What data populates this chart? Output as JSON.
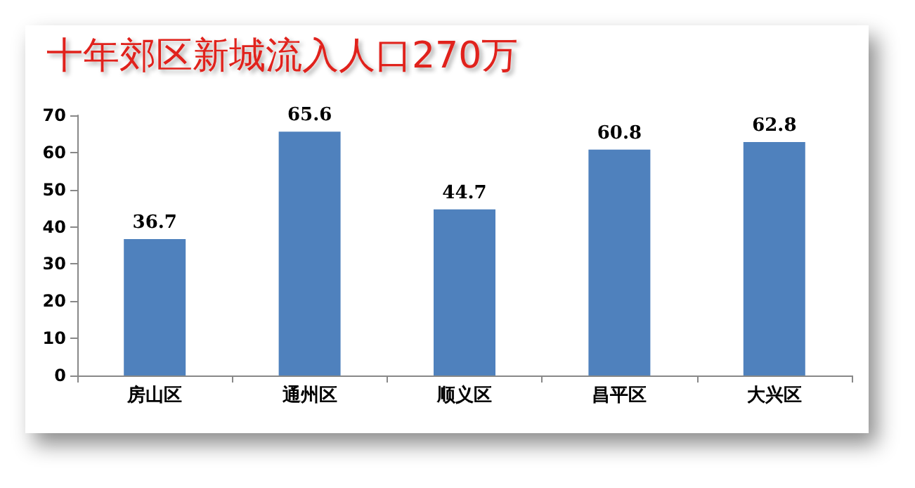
{
  "chart_data": {
    "type": "bar",
    "title": "十年郊区新城流入人口270万",
    "categories": [
      "房山区",
      "通州区",
      "顺义区",
      "昌平区",
      "大兴区"
    ],
    "values": [
      36.7,
      65.6,
      44.7,
      60.8,
      62.8
    ],
    "color": "#4f81bd",
    "ylim": [
      0,
      70
    ],
    "yticks": [
      0,
      10,
      20,
      30,
      40,
      50,
      60,
      70
    ],
    "grid": false,
    "data_labels": true
  }
}
